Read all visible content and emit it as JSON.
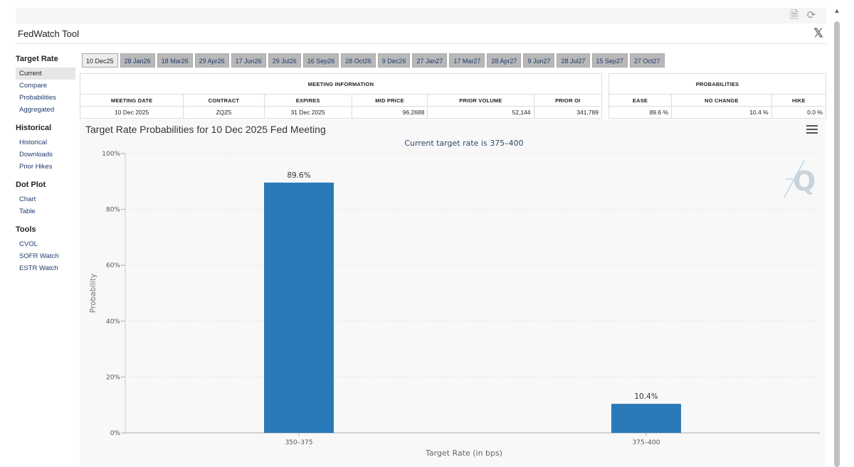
{
  "app": {
    "title": "FedWatch Tool"
  },
  "sidebar": {
    "sections": [
      {
        "heading": "Target Rate",
        "items": [
          "Current",
          "Compare",
          "Probabilities",
          "Aggregated"
        ]
      },
      {
        "heading": "Historical",
        "items": [
          "Historical",
          "Downloads",
          "Prior Hikes"
        ]
      },
      {
        "heading": "Dot Plot",
        "items": [
          "Chart",
          "Table"
        ]
      },
      {
        "heading": "Tools",
        "items": [
          "CVOL",
          "SOFR Watch",
          "ESTR Watch"
        ]
      }
    ],
    "active": "Current"
  },
  "tabs": [
    "10 Dec25",
    "28 Jan26",
    "18 Mar26",
    "29 Apr26",
    "17 Jun26",
    "29 Jul26",
    "16 Sep26",
    "28 Oct26",
    "9 Dec26",
    "27 Jan27",
    "17 Mar27",
    "28 Apr27",
    "9 Jun27",
    "28 Jul27",
    "15 Sep27",
    "27 Oct27"
  ],
  "active_tab": "10 Dec25",
  "meeting_info": {
    "group_label": "MEETING INFORMATION",
    "headers": [
      "MEETING DATE",
      "CONTRACT",
      "EXPIRES",
      "MID PRICE",
      "PRIOR VOLUME",
      "PRIOR OI"
    ],
    "row": [
      "10 Dec 2025",
      "ZQZ5",
      "31 Dec 2025",
      "96.2688",
      "52,144",
      "341,789"
    ]
  },
  "probabilities": {
    "group_label": "PROBABILITIES",
    "headers": [
      "EASE",
      "NO CHANGE",
      "HIKE"
    ],
    "row": [
      "89.6 %",
      "10.4 %",
      "0.0 %"
    ]
  },
  "chart_data": {
    "type": "bar",
    "title": "Target Rate Probabilities for 10 Dec 2025 Fed Meeting",
    "subtitle": "Current target rate is 375–400",
    "categories": [
      "350–375",
      "375–400"
    ],
    "values": [
      89.6,
      10.4
    ],
    "data_labels": [
      "89.6%",
      "10.4%"
    ],
    "xlabel": "Target Rate (in bps)",
    "ylabel": "Probability",
    "ylim": [
      0,
      100
    ],
    "yticks": [
      0,
      20,
      40,
      60,
      80,
      100
    ],
    "ytick_labels": [
      "0%",
      "20%",
      "40%",
      "60%",
      "80%",
      "100%"
    ],
    "grid": true,
    "bar_color": "#2a7ab9"
  },
  "colors": {
    "bar": "#2a7ab9",
    "link": "#1f3b6e",
    "tab_bg": "#b8b8b8",
    "tab_active": "#ececec"
  }
}
